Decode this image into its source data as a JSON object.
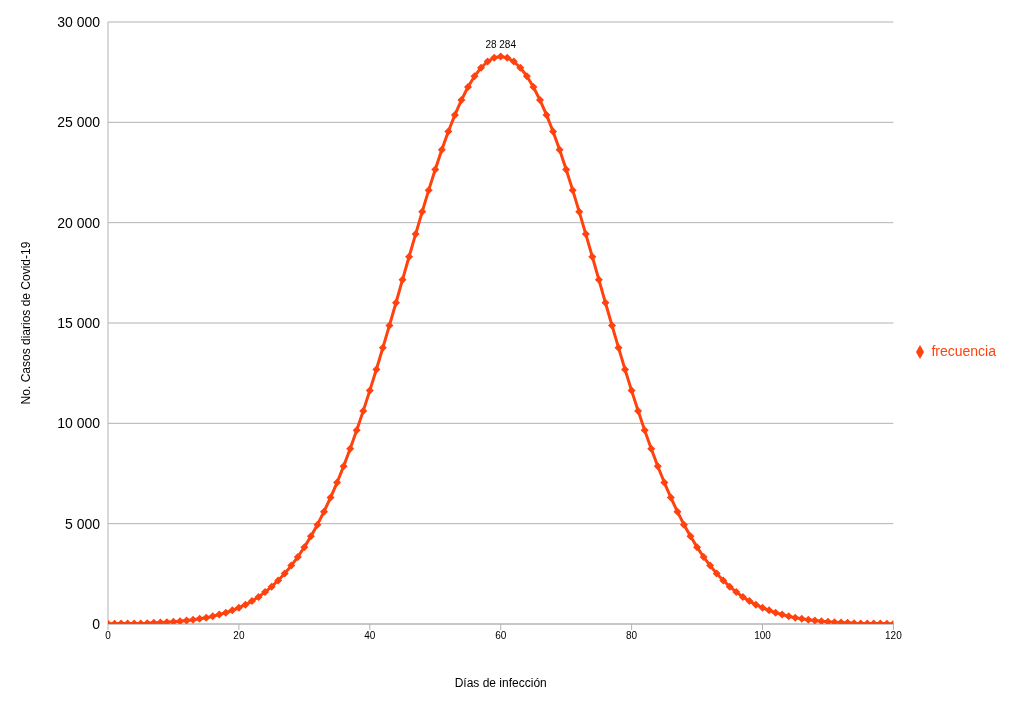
{
  "chart_data": {
    "type": "line",
    "xlabel": "Días de infección",
    "ylabel": "No. Casos diarios de Covid-19",
    "x": [
      0,
      1,
      2,
      3,
      4,
      5,
      6,
      7,
      8,
      9,
      10,
      11,
      12,
      13,
      14,
      15,
      16,
      17,
      18,
      19,
      20,
      21,
      22,
      23,
      24,
      25,
      26,
      27,
      28,
      29,
      30,
      31,
      32,
      33,
      34,
      35,
      36,
      37,
      38,
      39,
      40,
      41,
      42,
      43,
      44,
      45,
      46,
      47,
      48,
      49,
      50,
      51,
      52,
      53,
      54,
      55,
      56,
      57,
      58,
      59,
      60,
      61,
      62,
      63,
      64,
      65,
      66,
      67,
      68,
      69,
      70,
      71,
      72,
      73,
      74,
      75,
      76,
      77,
      78,
      79,
      80,
      81,
      82,
      83,
      84,
      85,
      86,
      87,
      88,
      89,
      90,
      91,
      92,
      93,
      94,
      95,
      96,
      97,
      98,
      99,
      100,
      101,
      102,
      103,
      104,
      105,
      106,
      107,
      108,
      109,
      110,
      111,
      112,
      113,
      114,
      115,
      116,
      117,
      118,
      119,
      120
    ],
    "series": [
      {
        "name": "frecuencia",
        "color": "#ff420e",
        "values": [
          10,
          10,
          20,
          20,
          30,
          30,
          40,
          60,
          70,
          90,
          110,
          140,
          170,
          210,
          260,
          310,
          380,
          470,
          560,
          680,
          810,
          960,
          1140,
          1350,
          1590,
          1860,
          2170,
          2520,
          2910,
          3340,
          3830,
          4370,
          4950,
          5600,
          6300,
          7050,
          7860,
          8730,
          9650,
          10620,
          11630,
          12680,
          13770,
          14880,
          16010,
          17160,
          18300,
          19430,
          20540,
          21620,
          22650,
          23630,
          24540,
          25370,
          26110,
          26760,
          27300,
          27720,
          28030,
          28220,
          28284,
          28220,
          28030,
          27720,
          27300,
          26760,
          26110,
          25370,
          24540,
          23630,
          22650,
          21620,
          20540,
          19430,
          18300,
          17160,
          16010,
          14880,
          13770,
          12680,
          11630,
          10620,
          9650,
          8730,
          7860,
          7050,
          6300,
          5600,
          4950,
          4370,
          3830,
          3340,
          2910,
          2520,
          2170,
          1860,
          1590,
          1350,
          1140,
          960,
          810,
          680,
          560,
          470,
          380,
          310,
          260,
          210,
          170,
          140,
          110,
          90,
          70,
          60,
          40,
          30,
          30,
          20,
          20,
          10,
          10
        ],
        "value_labels": [
          null,
          null,
          null,
          null,
          null,
          null,
          null,
          null,
          null,
          null,
          null,
          null,
          null,
          null,
          null,
          null,
          null,
          null,
          null,
          null,
          null,
          null,
          null,
          null,
          null,
          null,
          null,
          null,
          null,
          null,
          null,
          null,
          null,
          null,
          null,
          null,
          null,
          null,
          null,
          null,
          null,
          null,
          null,
          null,
          null,
          null,
          null,
          null,
          null,
          null,
          null,
          null,
          null,
          null,
          null,
          null,
          null,
          null,
          null,
          null,
          "28 284",
          null,
          null,
          null,
          null,
          null,
          null,
          null,
          null,
          null,
          null,
          null,
          null,
          null,
          null,
          null,
          null,
          null,
          null,
          null,
          null,
          null,
          null,
          null,
          null,
          null,
          null,
          null,
          null,
          null,
          null,
          null,
          null,
          null,
          null,
          null,
          null,
          null,
          null,
          null,
          null,
          null,
          null,
          null,
          null,
          null,
          null,
          null,
          null,
          null,
          null,
          null,
          null,
          null,
          null,
          null,
          null,
          null,
          null,
          null,
          null
        ]
      }
    ],
    "xlim": [
      0,
      120
    ],
    "xticks": [
      0,
      20,
      40,
      60,
      80,
      100,
      120
    ],
    "ylim": [
      0,
      30000
    ],
    "yticks": [
      0,
      {
        "value": 5000,
        "label": "5 000"
      },
      {
        "value": 10000,
        "label": "10 000"
      },
      {
        "value": 15000,
        "label": "15 000"
      },
      {
        "value": 20000,
        "label": "20 000"
      },
      {
        "value": 25000,
        "label": "25 000"
      },
      {
        "value": 30000,
        "label": "30 000"
      }
    ],
    "grid": "y",
    "legend": "right",
    "marker": "diamond",
    "line_style": "solid"
  }
}
